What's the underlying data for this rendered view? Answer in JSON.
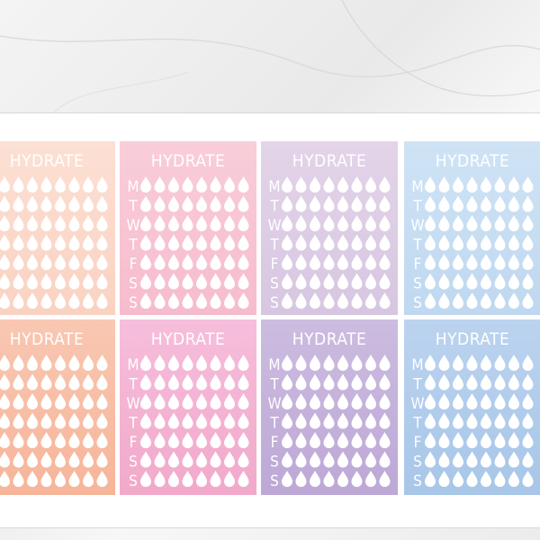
{
  "stickers": [
    {
      "title": "HYDRATE"
    },
    {
      "title": "HYDRATE",
      "days": [
        "M",
        "T",
        "W",
        "T",
        "F",
        "S",
        "S"
      ]
    },
    {
      "title": "HYDRATE",
      "days": [
        "M",
        "T",
        "W",
        "T",
        "F",
        "S",
        "S"
      ]
    },
    {
      "title": "HYDRATE",
      "days": [
        "M",
        "T",
        "W",
        "T",
        "F",
        "S",
        "S"
      ]
    },
    {
      "title": "HYDRATE"
    },
    {
      "title": "HYDRATE",
      "days": [
        "M",
        "T",
        "W",
        "T",
        "F",
        "S",
        "S"
      ]
    },
    {
      "title": "HYDRATE",
      "days": [
        "M",
        "T",
        "W",
        "T",
        "F",
        "S",
        "S"
      ]
    },
    {
      "title": "HYDRATE",
      "days": [
        "M",
        "T",
        "W",
        "T",
        "F",
        "S",
        "S"
      ]
    }
  ]
}
